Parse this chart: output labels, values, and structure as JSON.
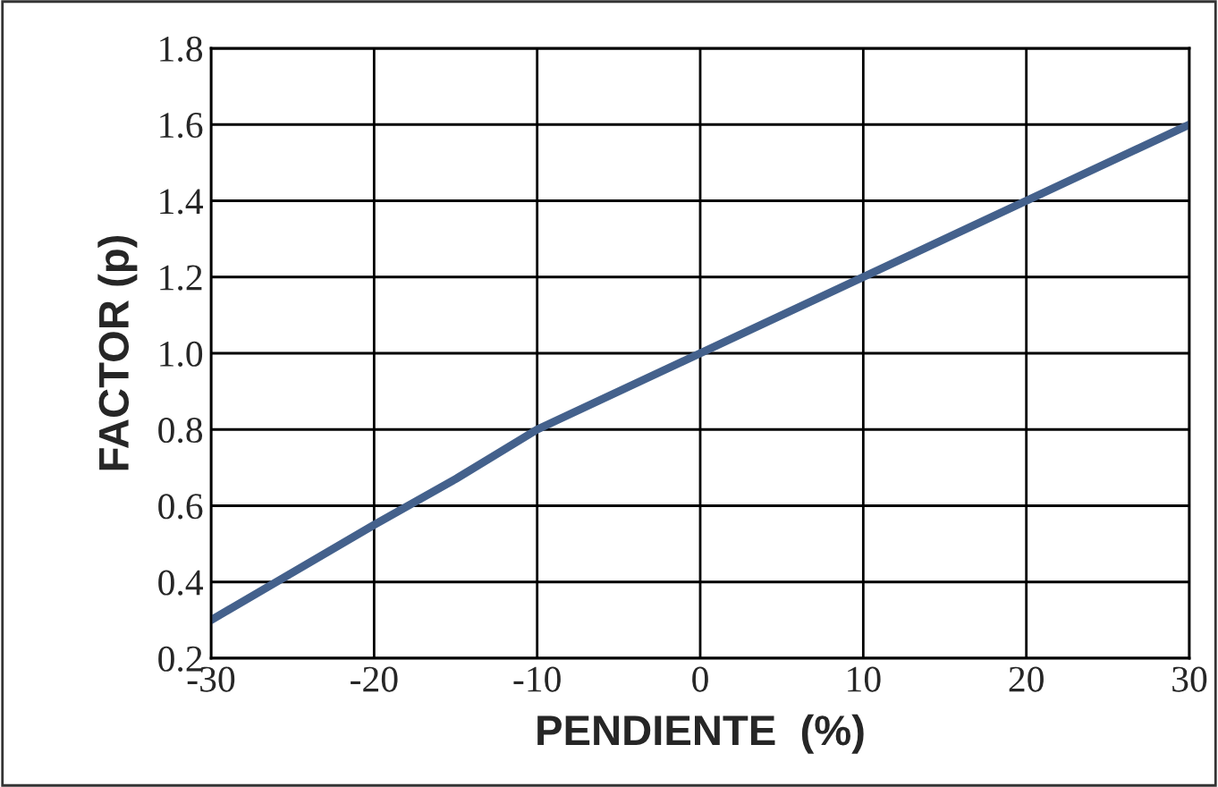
{
  "chart_data": {
    "type": "line",
    "xlabel": "PENDIENTE  (%)",
    "ylabel": "FACTOR (p)",
    "x": [
      -30,
      -20,
      -15,
      -10,
      0,
      10,
      20,
      30
    ],
    "series": [
      {
        "color": "#44618c",
        "values": [
          0.3,
          0.55,
          0.67,
          0.8,
          1.0,
          1.2,
          1.4,
          1.6
        ]
      }
    ],
    "xlim": [
      -30,
      30
    ],
    "ylim": [
      0.2,
      1.8
    ],
    "xticks": [
      -30,
      -20,
      -10,
      0,
      10,
      20,
      30
    ],
    "yticks": [
      {
        "value": 0.2,
        "label": "0.2"
      },
      {
        "value": 0.4,
        "label": "0.4"
      },
      {
        "value": 0.6,
        "label": "0.6"
      },
      {
        "value": 0.8,
        "label": "0.8"
      },
      {
        "value": 1.0,
        "label": "1.0"
      },
      {
        "value": 1.2,
        "label": "1.2"
      },
      {
        "value": 1.4,
        "label": "1.4"
      },
      {
        "value": 1.6,
        "label": "1.6"
      },
      {
        "value": 1.8,
        "label": "1.8"
      }
    ],
    "grid": true,
    "marker": "none",
    "line_style": "solid"
  }
}
